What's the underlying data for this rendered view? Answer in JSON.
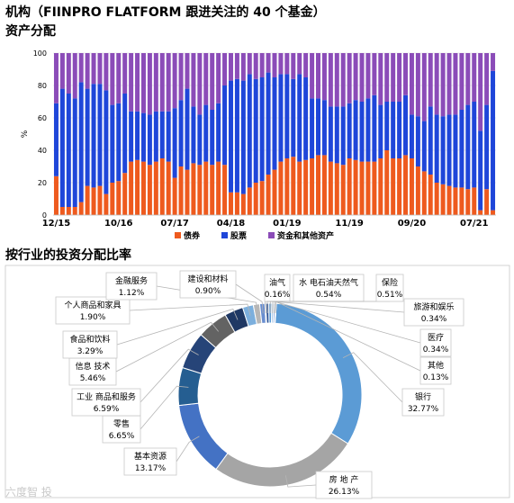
{
  "header": {
    "title": "机构（FIINPRO FLATFORM 跟进关注的 40 个基金）",
    "section1_title": "资产分配",
    "section2_title": "按行业的投资分配比率"
  },
  "watermark": "六度智 投",
  "colors": {
    "bonds": "#ee5a1e",
    "stocks": "#1f46d9",
    "other": "#8b4cb8"
  },
  "chart_data": [
    {
      "type": "bar",
      "stacked": true,
      "ylabel": "%",
      "ylim": [
        0,
        100
      ],
      "yticks": [
        "0",
        "20",
        "40",
        "60",
        "80",
        "100"
      ],
      "xticks": [
        {
          "label": "12/15",
          "index": 0
        },
        {
          "label": "10/16",
          "index": 10
        },
        {
          "label": "07/17",
          "index": 19
        },
        {
          "label": "04/18",
          "index": 28
        },
        {
          "label": "01/19",
          "index": 37
        },
        {
          "label": "11/19",
          "index": 47
        },
        {
          "label": "09/20",
          "index": 57
        },
        {
          "label": "07/21",
          "index": 67
        }
      ],
      "legend": [
        "债券",
        "股票",
        "资金和其他资产"
      ],
      "legend_position": "bottom",
      "series": [
        {
          "name": "债券",
          "values": [
            24,
            5,
            5,
            5,
            8,
            18,
            17,
            18,
            13,
            20,
            21,
            26,
            33,
            34,
            33,
            31,
            33,
            35,
            33,
            23,
            30,
            28,
            32,
            31,
            33,
            31,
            33,
            31,
            14,
            14,
            13,
            17,
            20,
            21,
            25,
            28,
            33,
            35,
            36,
            33,
            34,
            35,
            37,
            37,
            33,
            32,
            31,
            35,
            34,
            33,
            33,
            33,
            35,
            40,
            35,
            35,
            37,
            35,
            30,
            27,
            25,
            20,
            19,
            18,
            17,
            17,
            16,
            17,
            3,
            16,
            3
          ]
        },
        {
          "name": "股票",
          "values": [
            45,
            73,
            70,
            67,
            74,
            60,
            64,
            63,
            64,
            48,
            48,
            49,
            31,
            30,
            30,
            31,
            31,
            29,
            31,
            43,
            41,
            50,
            35,
            31,
            35,
            34,
            36,
            49,
            69,
            70,
            70,
            70,
            64,
            64,
            63,
            57,
            54,
            52,
            48,
            54,
            51,
            37,
            35,
            34,
            34,
            35,
            36,
            34,
            37,
            37,
            39,
            41,
            33,
            30,
            35,
            35,
            37,
            27,
            31,
            31,
            42,
            42,
            42,
            44,
            45,
            48,
            52,
            53,
            49,
            52,
            86
          ]
        },
        {
          "name": "资金和其他资产",
          "values": [
            31,
            22,
            25,
            28,
            18,
            22,
            19,
            19,
            23,
            32,
            31,
            25,
            36,
            36,
            37,
            38,
            36,
            36,
            36,
            34,
            29,
            22,
            33,
            38,
            32,
            35,
            31,
            20,
            17,
            16,
            17,
            13,
            16,
            15,
            12,
            15,
            13,
            13,
            16,
            13,
            15,
            28,
            28,
            29,
            33,
            33,
            33,
            31,
            29,
            30,
            28,
            26,
            32,
            30,
            30,
            30,
            26,
            38,
            39,
            42,
            33,
            38,
            39,
            38,
            38,
            35,
            32,
            30,
            48,
            32,
            11
          ]
        }
      ]
    },
    {
      "type": "pie",
      "donut": true,
      "slices": [
        {
          "name": "银行",
          "value": 32.77,
          "label": "32.77%",
          "color": "#5b9bd5"
        },
        {
          "name": "房 地 产",
          "value": 26.13,
          "label": "26.13%",
          "color": "#a5a5a5"
        },
        {
          "name": "基本资源",
          "value": 13.17,
          "label": "13.17%",
          "color": "#4472c4"
        },
        {
          "name": "零售",
          "value": 6.65,
          "label": "6.65%",
          "color": "#255e91"
        },
        {
          "name": "工业 商品和服务",
          "value": 6.59,
          "label": "6.59%",
          "color": "#264478"
        },
        {
          "name": "信息 技术",
          "value": 5.46,
          "label": "5.46%",
          "color": "#636363"
        },
        {
          "name": "食品和饮料",
          "value": 3.29,
          "label": "3.29%",
          "color": "#1f3864"
        },
        {
          "name": "个人商品和家具",
          "value": 1.9,
          "label": "1.90%",
          "color": "#7cafdd"
        },
        {
          "name": "金融服务",
          "value": 1.12,
          "label": "1.12%",
          "color": "#b7b7b7"
        },
        {
          "name": "建设和材料",
          "value": 0.9,
          "label": "0.90%",
          "color": "#698ed0"
        },
        {
          "name": "油气",
          "value": 0.16,
          "label": "0.16%",
          "color": "#3a6fb0"
        },
        {
          "name": "水 电石油天然气",
          "value": 0.54,
          "label": "0.54%",
          "color": "#2e5597"
        },
        {
          "name": "保险",
          "value": 0.51,
          "label": "0.51%",
          "color": "#5b9bd5"
        },
        {
          "name": "旅游和娱乐",
          "value": 0.34,
          "label": "0.34%",
          "color": "#9dc3e6"
        },
        {
          "name": "医疗",
          "value": 0.34,
          "label": "0.34%",
          "color": "#8faadc"
        },
        {
          "name": "其他",
          "value": 0.13,
          "label": "0.13%",
          "color": "#2f5597"
        }
      ]
    }
  ]
}
